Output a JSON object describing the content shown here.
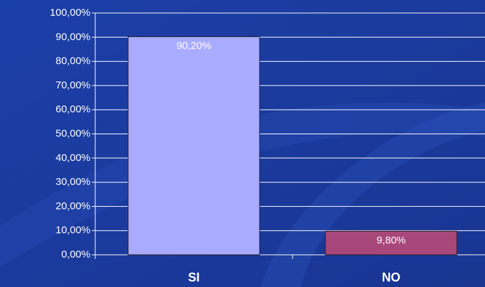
{
  "chart_data": {
    "type": "bar",
    "categories": [
      "SI",
      "NO"
    ],
    "values": [
      90.2,
      9.8
    ],
    "value_labels": [
      "90,20%",
      "9,80%"
    ],
    "colors": [
      "#a9abff",
      "#a8477a"
    ],
    "ylim": [
      0,
      100
    ],
    "yticks": [
      {
        "value": 0,
        "label": "0,00%"
      },
      {
        "value": 10,
        "label": "10,00%"
      },
      {
        "value": 20,
        "label": "20,00%"
      },
      {
        "value": 30,
        "label": "30,00%"
      },
      {
        "value": 40,
        "label": "40,00%"
      },
      {
        "value": 50,
        "label": "50,00%"
      },
      {
        "value": 60,
        "label": "60,00%"
      },
      {
        "value": 70,
        "label": "70,00%"
      },
      {
        "value": 80,
        "label": "80,00%"
      },
      {
        "value": 90,
        "label": "90,00%"
      },
      {
        "value": 100,
        "label": "100,00%"
      }
    ],
    "grid": true
  }
}
